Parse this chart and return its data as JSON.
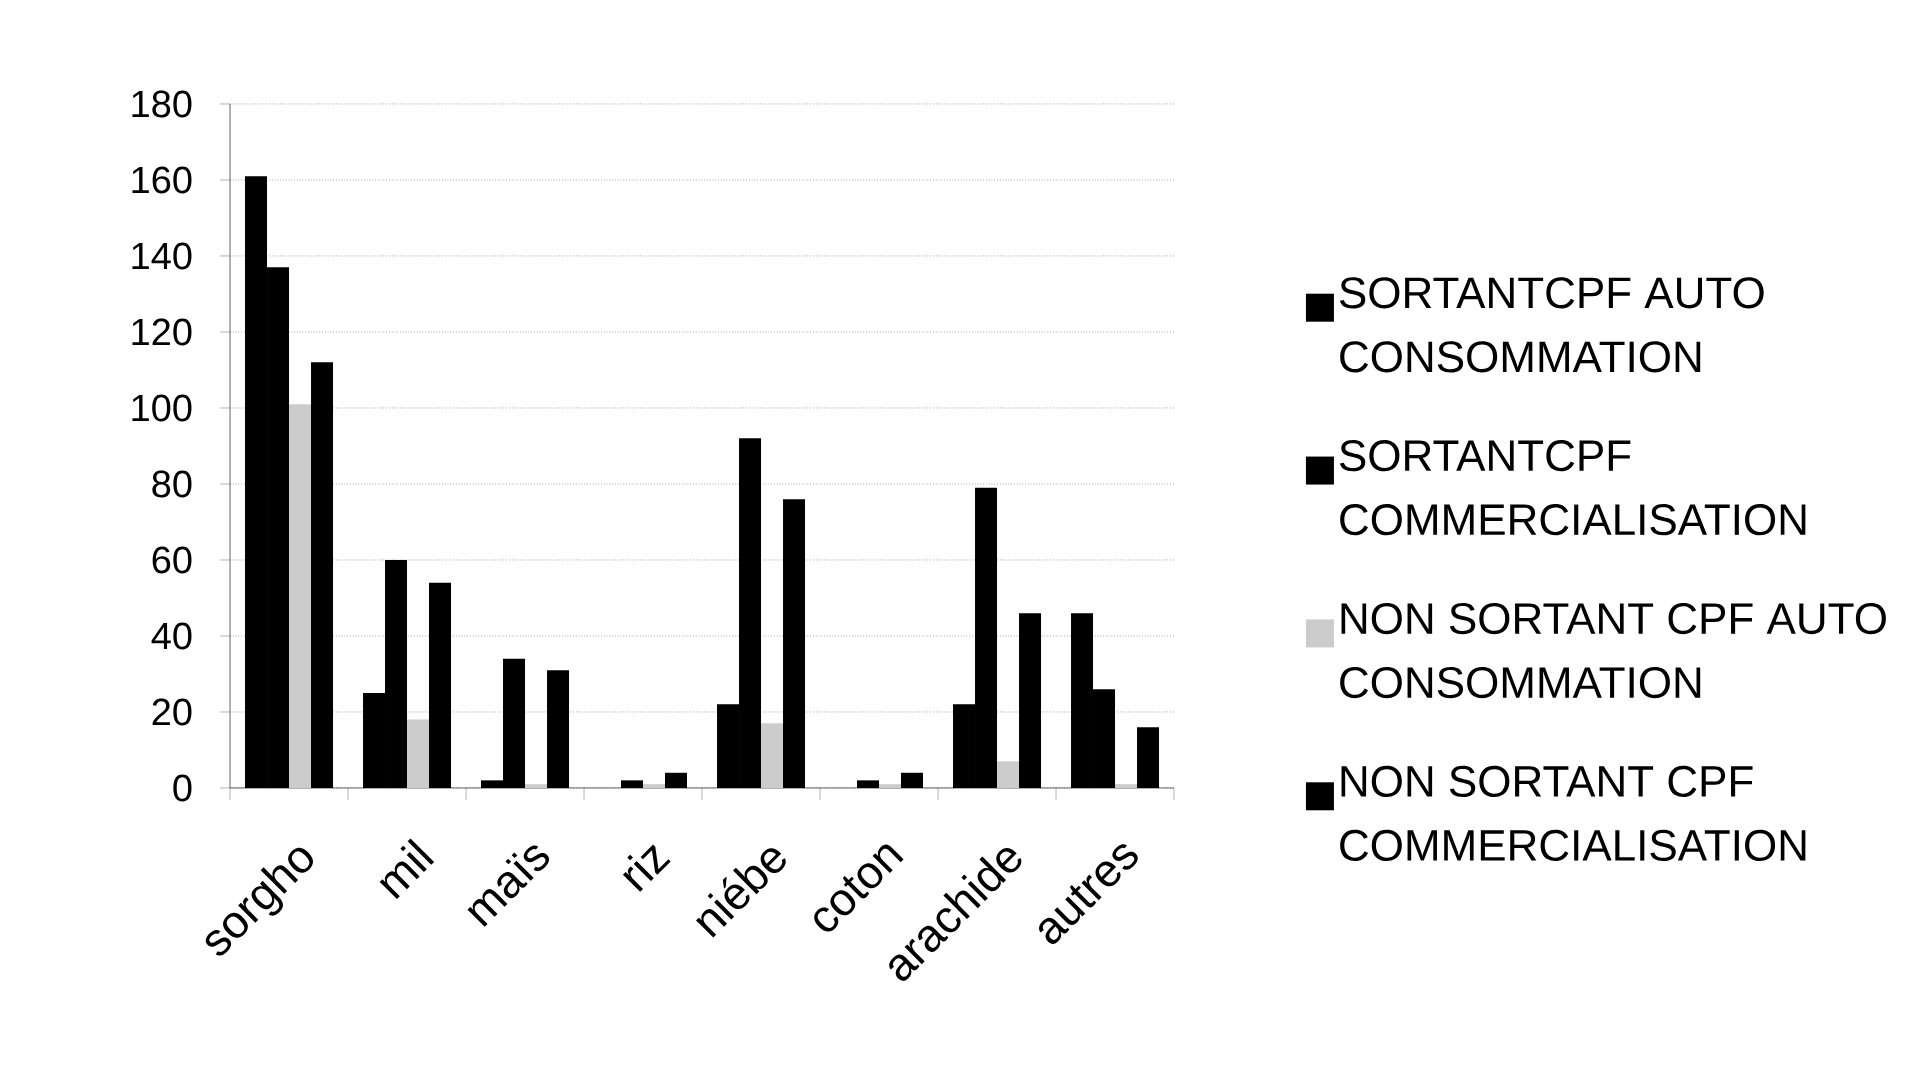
{
  "chart_data": {
    "type": "bar",
    "categories": [
      "sorgho",
      "mil",
      "maïs",
      "riz",
      "niébe",
      "coton",
      "arachide",
      "autres"
    ],
    "series": [
      {
        "name": "SORTANTCPF AUTO CONSOMMATION",
        "color": "#000000",
        "values": [
          161,
          25,
          2,
          0,
          22,
          0,
          22,
          46
        ]
      },
      {
        "name": "SORTANTCPF COMMERCIALISATION",
        "color": "#000000",
        "values": [
          137,
          60,
          34,
          2,
          92,
          2,
          79,
          26
        ]
      },
      {
        "name": "NON SORTANT CPF AUTO CONSOMMATION",
        "color": "#cccccc",
        "values": [
          101,
          18,
          1,
          1,
          17,
          1,
          7,
          1
        ]
      },
      {
        "name": "NON SORTANT CPF COMMERCIALISATION",
        "color": "#000000",
        "values": [
          112,
          54,
          31,
          4,
          76,
          4,
          46,
          16
        ]
      }
    ],
    "ylim": [
      0,
      180
    ],
    "yticks": [
      0,
      20,
      40,
      60,
      80,
      100,
      120,
      140,
      160,
      180
    ],
    "grid": "y",
    "legend": "right"
  }
}
